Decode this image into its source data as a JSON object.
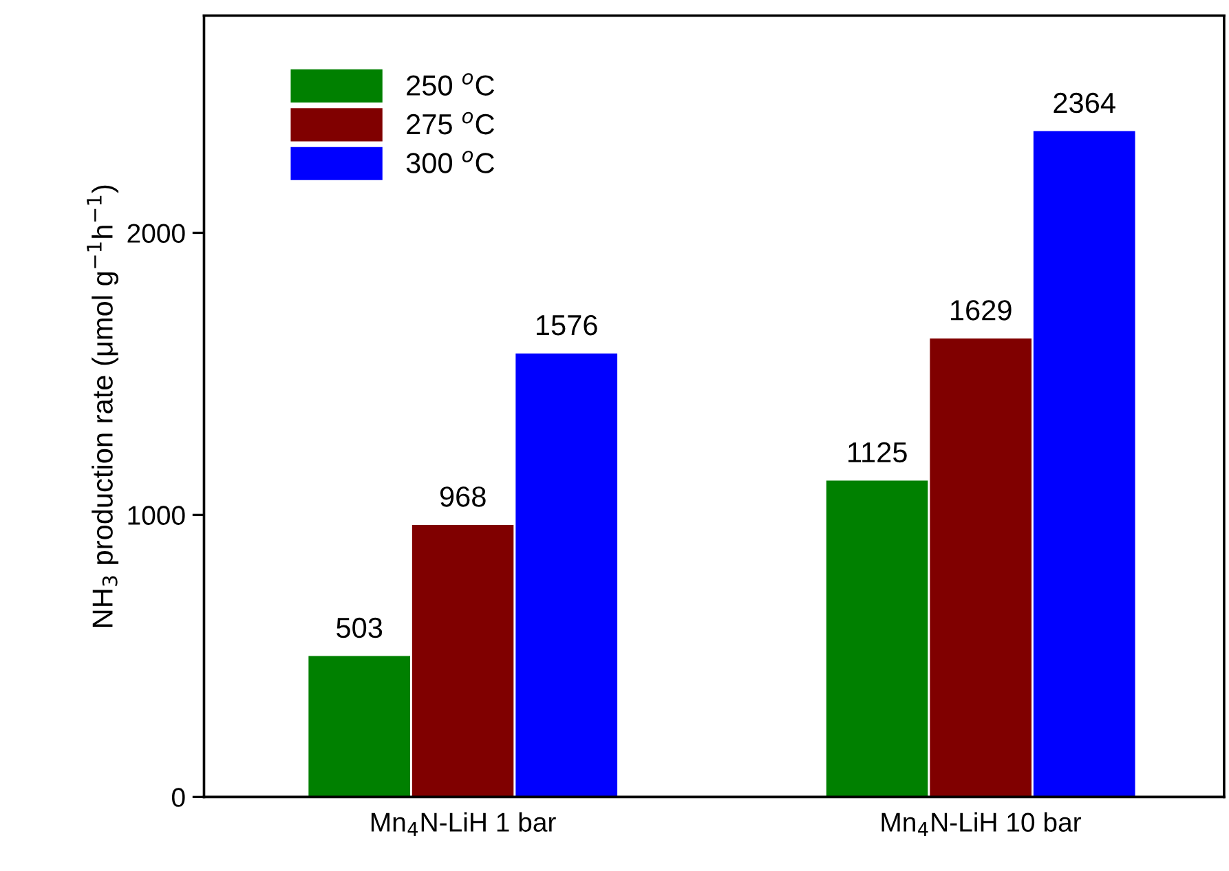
{
  "chart_data": {
    "type": "bar",
    "ylabel": "NH$_{3}$ production rate (μmol g$^{−1}$h$^{−1}$)",
    "categories": [
      "Mn$_{4}$N-LiH 1 bar",
      "Mn$_{4}$N-LiH 10 bar"
    ],
    "series": [
      {
        "name": "250 $^{o}$C",
        "color": "#008000",
        "values": [
          503,
          1125
        ]
      },
      {
        "name": "275 $^{o}$C",
        "color": "#800000",
        "values": [
          968,
          1629
        ]
      },
      {
        "name": "300 $^{o}$C",
        "color": "#0000ff",
        "values": [
          1576,
          2364
        ]
      }
    ],
    "ylim": [
      0,
      2770
    ],
    "yticks": [
      0,
      1000,
      2000
    ],
    "data_labels": true,
    "legend": "top left",
    "grid": false
  }
}
